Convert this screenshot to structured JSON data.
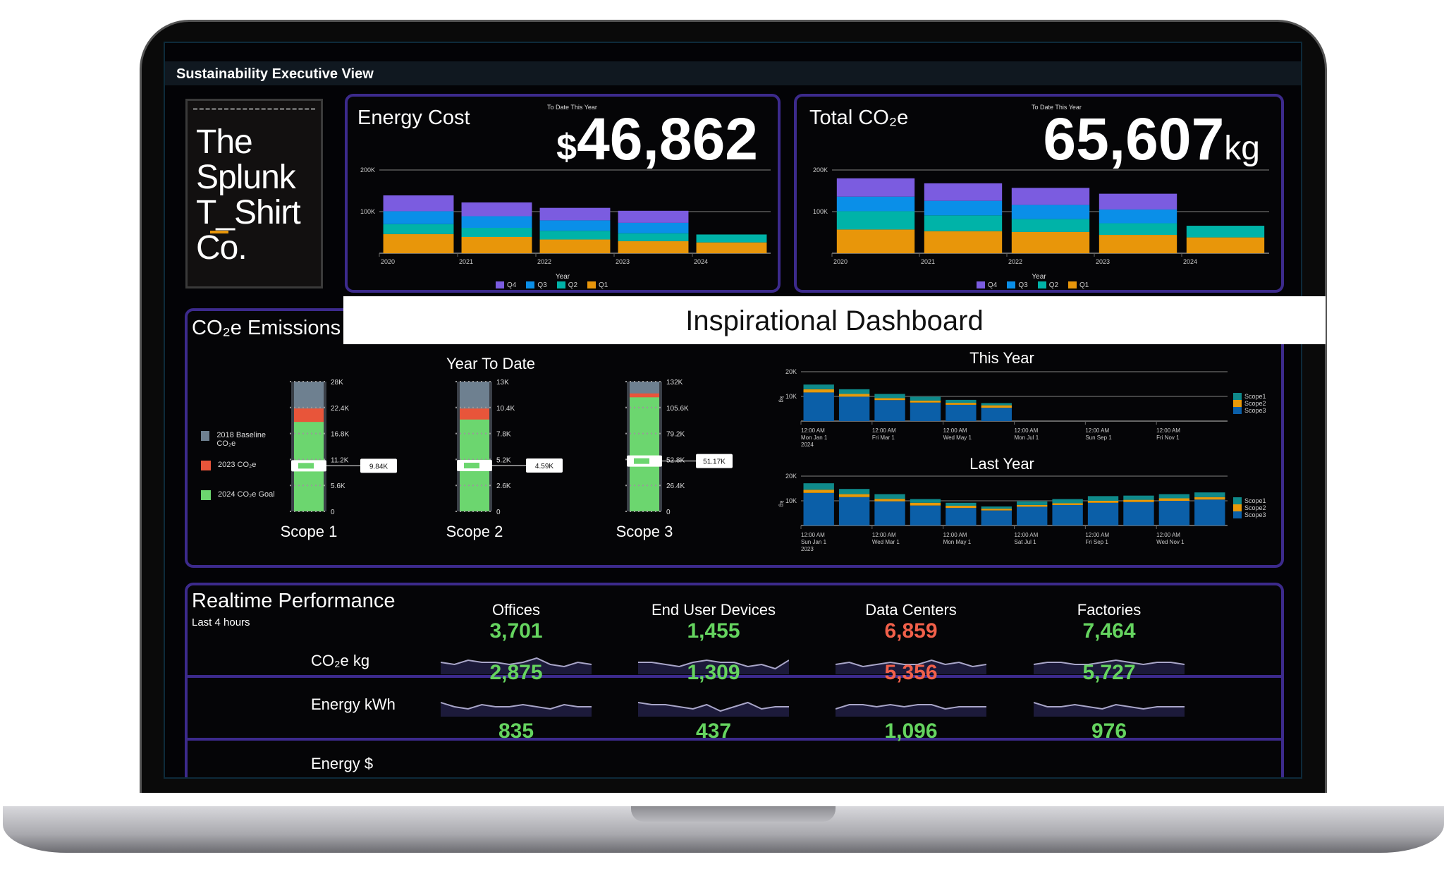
{
  "header": {
    "title": "Sustainability Executive View"
  },
  "logo": {
    "lines": [
      "The",
      "Splunk",
      "T_Shirt",
      "Co."
    ]
  },
  "banner": {
    "text": "Inspirational Dashboard"
  },
  "colors": {
    "q4": "#7b5ce0",
    "q3": "#0a8fe8",
    "q2": "#00b3a8",
    "q1": "#e8960a",
    "scope1": "#0f8a8a",
    "scope2": "#e89a0a",
    "scope3": "#0b5fa8",
    "baseline": "#6e8090",
    "y2023": "#e8553a",
    "goal": "#6cd66f",
    "green": "#65d45f",
    "red": "#f2604a",
    "panel_border": "#3c2a8c"
  },
  "energy_cost": {
    "title": "Energy Cost",
    "subtitle": "To Date This Year",
    "currency": "$",
    "value": "46,862"
  },
  "total_co2": {
    "title": "Total CO₂e",
    "subtitle": "To Date This Year",
    "value": "65,607",
    "unit": "kg"
  },
  "emissions": {
    "title": "CO₂e Emissions",
    "ytd_title": "Year To Date",
    "legend": [
      "2018 Baseline CO₂e",
      "2023 CO₂e",
      "2024 CO₂e Goal"
    ],
    "this_year_title": "This Year",
    "last_year_title": "Last Year"
  },
  "realtime": {
    "title": "Realtime Performance",
    "subtitle": "Last 4 hours",
    "columns": [
      "Offices",
      "End User Devices",
      "Data Centers",
      "Factories"
    ],
    "rows": [
      {
        "label": "CO₂e kg",
        "values": [
          "3,701",
          "1,455",
          "6,859",
          "7,464"
        ],
        "status": [
          "good",
          "good",
          "bad",
          "good"
        ]
      },
      {
        "label": "Energy kWh",
        "values": [
          "2,875",
          "1,309",
          "5,356",
          "5,727"
        ],
        "status": [
          "good",
          "good",
          "bad",
          "good"
        ]
      },
      {
        "label": "Energy $",
        "values": [
          "835",
          "437",
          "1,096",
          "976"
        ],
        "status": [
          "good",
          "good",
          "good",
          "good"
        ]
      }
    ],
    "sparklines": [
      [
        [
          5,
          4,
          6,
          5,
          5,
          4,
          5,
          7,
          4,
          3,
          5,
          4
        ],
        [
          5,
          5,
          4,
          3,
          5,
          6,
          5,
          5,
          3,
          4,
          2,
          6
        ],
        [
          4,
          5,
          3,
          4,
          5,
          4,
          4,
          6,
          4,
          5,
          3,
          4
        ],
        [
          4,
          5,
          5,
          4,
          4,
          5,
          6,
          5,
          4,
          5,
          5,
          4
        ]
      ],
      [
        [
          6,
          4,
          3,
          5,
          4,
          4,
          5,
          4,
          3,
          5,
          4,
          4
        ],
        [
          6,
          5,
          5,
          4,
          3,
          5,
          2,
          4,
          6,
          3,
          4,
          4
        ],
        [
          3,
          5,
          5,
          4,
          5,
          4,
          5,
          5,
          3,
          4,
          4,
          4
        ],
        [
          6,
          4,
          4,
          5,
          4,
          3,
          5,
          4,
          3,
          4,
          4,
          4
        ]
      ]
    ]
  },
  "chart_data": [
    {
      "id": "energy",
      "type": "bar",
      "stacked": true,
      "title": "Energy Cost",
      "xlabel": "Year",
      "ylabel": "",
      "categories": [
        "2020",
        "2021",
        "2022",
        "2023",
        "2024"
      ],
      "yticks": [
        "100K",
        "200K"
      ],
      "ylim": [
        0,
        200
      ],
      "series": [
        {
          "name": "Q1",
          "values": [
            46,
            39,
            33,
            29,
            26
          ]
        },
        {
          "name": "Q2",
          "values": [
            24,
            22,
            21,
            19,
            19
          ]
        },
        {
          "name": "Q3",
          "values": [
            31,
            28,
            25,
            25,
            0
          ]
        },
        {
          "name": "Q4",
          "values": [
            38,
            33,
            30,
            29,
            0
          ]
        }
      ],
      "legend": [
        "Q4",
        "Q3",
        "Q2",
        "Q1"
      ]
    },
    {
      "id": "co2",
      "type": "bar",
      "stacked": true,
      "title": "Total CO₂e",
      "xlabel": "Year",
      "ylabel": "",
      "categories": [
        "2020",
        "2021",
        "2022",
        "2023",
        "2024"
      ],
      "yticks": [
        "100K",
        "200K"
      ],
      "ylim": [
        0,
        200
      ],
      "series": [
        {
          "name": "Q1",
          "values": [
            57,
            53,
            51,
            44,
            38
          ]
        },
        {
          "name": "Q2",
          "values": [
            44,
            38,
            31,
            28,
            28
          ]
        },
        {
          "name": "Q3",
          "values": [
            35,
            35,
            34,
            33,
            0
          ]
        },
        {
          "name": "Q4",
          "values": [
            44,
            42,
            41,
            38,
            0
          ]
        }
      ],
      "legend": [
        "Q4",
        "Q3",
        "Q2",
        "Q1"
      ]
    },
    {
      "id": "gauges",
      "type": "bar",
      "title": "Year To Date",
      "categories": [
        "Scope 1",
        "Scope 2",
        "Scope 3"
      ],
      "max": [
        28,
        13,
        132
      ],
      "baseline": [
        28,
        13,
        132
      ],
      "y2023": [
        22.2,
        10.3,
        120
      ],
      "goal": [
        19.3,
        9.2,
        116
      ],
      "current": [
        9.84,
        4.59,
        51.17
      ],
      "current_labels": [
        "9.84K",
        "4.59K",
        "51.17K"
      ],
      "ticks": [
        [
          "0",
          "5.6K",
          "11.2K",
          "16.8K",
          "22.4K",
          "28K"
        ],
        [
          "0",
          "2.6K",
          "5.2K",
          "7.8K",
          "10.4K",
          "13K"
        ],
        [
          "0",
          "26.4K",
          "52.8K",
          "79.2K",
          "105.6K",
          "132K"
        ]
      ]
    },
    {
      "id": "thisyear",
      "type": "bar",
      "stacked": true,
      "title": "This Year",
      "ylabel": "kg",
      "ylim": [
        0,
        20
      ],
      "yticks": [
        "10K",
        "20K"
      ],
      "slots": 12,
      "xticks": [
        [
          "12:00 AM",
          "Mon Jan 1",
          "2024"
        ],
        [
          "12:00 AM",
          "Fri Mar 1"
        ],
        [
          "12:00 AM",
          "Wed May 1"
        ],
        [
          "12:00 AM",
          "Mon Jul 1"
        ],
        [
          "12:00 AM",
          "Sun Sep 1"
        ],
        [
          "12:00 AM",
          "Fri Nov 1"
        ]
      ],
      "series": [
        {
          "name": "Scope3",
          "values": [
            11.6,
            9.9,
            8.5,
            7.5,
            6.6,
            5.4
          ]
        },
        {
          "name": "Scope2",
          "values": [
            1.3,
            1.1,
            0.8,
            0.8,
            0.8,
            1.0
          ]
        },
        {
          "name": "Scope1",
          "values": [
            1.9,
            1.9,
            1.7,
            1.6,
            1.2,
            0.9
          ]
        }
      ],
      "legend": [
        "Scope1",
        "Scope2",
        "Scope3"
      ]
    },
    {
      "id": "lastyear",
      "type": "bar",
      "stacked": true,
      "title": "Last Year",
      "ylabel": "kg",
      "ylim": [
        0,
        20
      ],
      "yticks": [
        "10K",
        "20K"
      ],
      "slots": 12,
      "xticks": [
        [
          "12:00 AM",
          "Sun Jan 1",
          "2023"
        ],
        [
          "12:00 AM",
          "Wed Mar 1"
        ],
        [
          "12:00 AM",
          "Mon May 1"
        ],
        [
          "12:00 AM",
          "Sat Jul 1"
        ],
        [
          "12:00 AM",
          "Fri Sep 1"
        ],
        [
          "12:00 AM",
          "Wed Nov 1"
        ]
      ],
      "series": [
        {
          "name": "Scope3",
          "values": [
            13.2,
            11.5,
            9.8,
            8.1,
            7.1,
            6.1,
            7.6,
            8.3,
            9.2,
            9.5,
            10.0,
            10.5
          ]
        },
        {
          "name": "Scope2",
          "values": [
            1.3,
            1.2,
            1.0,
            1.1,
            0.9,
            0.7,
            0.7,
            0.7,
            0.8,
            0.9,
            1.0,
            1.0
          ]
        },
        {
          "name": "Scope1",
          "values": [
            2.6,
            2.1,
            1.9,
            1.5,
            1.2,
            0.9,
            1.5,
            1.7,
            1.9,
            1.7,
            1.7,
            1.9
          ]
        }
      ],
      "legend": [
        "Scope1",
        "Scope2",
        "Scope3"
      ]
    }
  ]
}
